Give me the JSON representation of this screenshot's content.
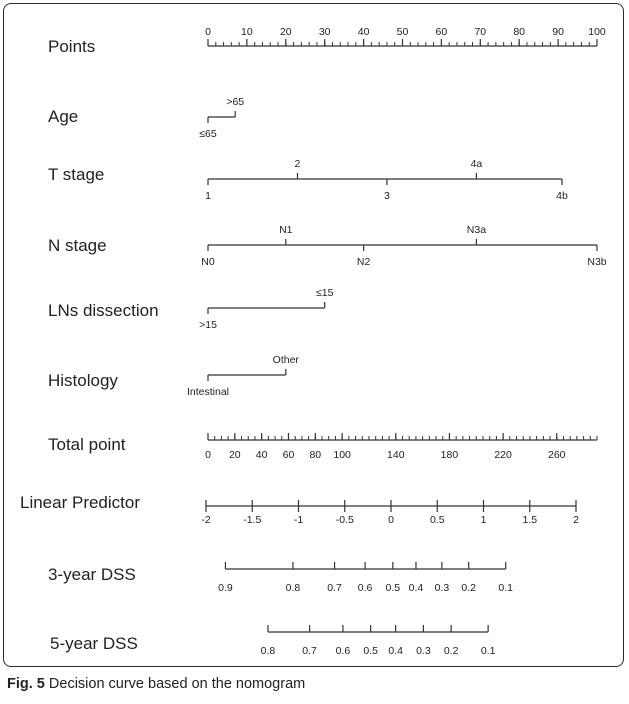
{
  "chart_data": {
    "type": "nomogram",
    "rows": [
      {
        "id": "points",
        "label": "Points",
        "range": [
          0,
          100
        ],
        "ticks": [
          {
            "value": 0,
            "label": "0",
            "pos": "above"
          },
          {
            "value": 10,
            "label": "10",
            "pos": "above"
          },
          {
            "value": 20,
            "label": "20",
            "pos": "above"
          },
          {
            "value": 30,
            "label": "30",
            "pos": "above"
          },
          {
            "value": 40,
            "label": "40",
            "pos": "above"
          },
          {
            "value": 50,
            "label": "50",
            "pos": "above"
          },
          {
            "value": 60,
            "label": "60",
            "pos": "above"
          },
          {
            "value": 70,
            "label": "70",
            "pos": "above"
          },
          {
            "value": 80,
            "label": "80",
            "pos": "above"
          },
          {
            "value": 90,
            "label": "90",
            "pos": "above"
          },
          {
            "value": 100,
            "label": "100",
            "pos": "above"
          }
        ],
        "minor_step": 2
      },
      {
        "id": "age",
        "label": "Age",
        "range": [
          0,
          7
        ],
        "ticks": [
          {
            "value": 0,
            "label": "≤65",
            "pos": "below"
          },
          {
            "value": 7,
            "label": ">65",
            "pos": "above"
          }
        ]
      },
      {
        "id": "t-stage",
        "label": "T stage",
        "range": [
          0,
          91
        ],
        "ticks": [
          {
            "value": 0,
            "label": "1",
            "pos": "below"
          },
          {
            "value": 23,
            "label": "2",
            "pos": "above"
          },
          {
            "value": 46,
            "label": "3",
            "pos": "below"
          },
          {
            "value": 69,
            "label": "4a",
            "pos": "above"
          },
          {
            "value": 91,
            "label": "4b",
            "pos": "below"
          }
        ]
      },
      {
        "id": "n-stage",
        "label": "N stage",
        "range": [
          0,
          100
        ],
        "ticks": [
          {
            "value": 0,
            "label": "N0",
            "pos": "below"
          },
          {
            "value": 20,
            "label": "N1",
            "pos": "above"
          },
          {
            "value": 40,
            "label": "N2",
            "pos": "below"
          },
          {
            "value": 69,
            "label": "N3a",
            "pos": "above"
          },
          {
            "value": 100,
            "label": "N3b",
            "pos": "below"
          }
        ]
      },
      {
        "id": "lns-dissection",
        "label": "LNs dissection",
        "range": [
          0,
          30
        ],
        "ticks": [
          {
            "value": 0,
            "label": ">15",
            "pos": "below"
          },
          {
            "value": 30,
            "label": "≤15",
            "pos": "above"
          }
        ]
      },
      {
        "id": "histology",
        "label": "Histology",
        "range": [
          0,
          20
        ],
        "ticks": [
          {
            "value": 0,
            "label": "Intestinal",
            "pos": "below"
          },
          {
            "value": 20,
            "label": "Other",
            "pos": "above"
          }
        ]
      },
      {
        "id": "total-point",
        "label": "Total point",
        "range": [
          0,
          290
        ],
        "ticks": [
          {
            "value": 0,
            "label": "0",
            "pos": "below"
          },
          {
            "value": 20,
            "label": "20",
            "pos": "below"
          },
          {
            "value": 40,
            "label": "40",
            "pos": "below"
          },
          {
            "value": 60,
            "label": "60",
            "pos": "below"
          },
          {
            "value": 80,
            "label": "80",
            "pos": "below"
          },
          {
            "value": 100,
            "label": "100",
            "pos": "below"
          },
          {
            "value": 140,
            "label": "140",
            "pos": "below"
          },
          {
            "value": 180,
            "label": "180",
            "pos": "below"
          },
          {
            "value": 220,
            "label": "220",
            "pos": "below"
          },
          {
            "value": 260,
            "label": "260",
            "pos": "below"
          }
        ],
        "minor_step": 5
      },
      {
        "id": "linear-predictor",
        "label": "Linear Predictor",
        "range": [
          -2,
          2
        ],
        "ticks": [
          {
            "value": -2,
            "label": "-2",
            "pos": "below"
          },
          {
            "value": -1.5,
            "label": "-1.5",
            "pos": "below"
          },
          {
            "value": -1,
            "label": "-1",
            "pos": "below"
          },
          {
            "value": -0.5,
            "label": "-0.5",
            "pos": "below"
          },
          {
            "value": 0,
            "label": "0",
            "pos": "below"
          },
          {
            "value": 0.5,
            "label": "0.5",
            "pos": "below"
          },
          {
            "value": 1,
            "label": "1",
            "pos": "below"
          },
          {
            "value": 1.5,
            "label": "1.5",
            "pos": "below"
          },
          {
            "value": 2,
            "label": "2",
            "pos": "below"
          }
        ]
      },
      {
        "id": "dss-3-year",
        "label": "3-year DSS",
        "ticks": [
          {
            "value": 0.9,
            "label": "0.9",
            "lp": -1.79
          },
          {
            "value": 0.8,
            "label": "0.8",
            "lp": -1.06
          },
          {
            "value": 0.7,
            "label": "0.7",
            "lp": -0.61
          },
          {
            "value": 0.6,
            "label": "0.6",
            "lp": -0.28
          },
          {
            "value": 0.5,
            "label": "0.5",
            "lp": 0.02
          },
          {
            "value": 0.4,
            "label": "0.4",
            "lp": 0.27
          },
          {
            "value": 0.3,
            "label": "0.3",
            "lp": 0.55
          },
          {
            "value": 0.2,
            "label": "0.2",
            "lp": 0.84
          },
          {
            "value": 0.1,
            "label": "0.1",
            "lp": 1.24
          }
        ]
      },
      {
        "id": "dss-5-year",
        "label": "5-year DSS",
        "ticks": [
          {
            "value": 0.8,
            "label": "0.8",
            "lp": -1.33
          },
          {
            "value": 0.7,
            "label": "0.7",
            "lp": -0.88
          },
          {
            "value": 0.6,
            "label": "0.6",
            "lp": -0.52
          },
          {
            "value": 0.5,
            "label": "0.5",
            "lp": -0.22
          },
          {
            "value": 0.4,
            "label": "0.4",
            "lp": 0.05
          },
          {
            "value": 0.3,
            "label": "0.3",
            "lp": 0.35
          },
          {
            "value": 0.2,
            "label": "0.2",
            "lp": 0.65
          },
          {
            "value": 0.1,
            "label": "0.1",
            "lp": 1.05
          }
        ]
      }
    ]
  },
  "caption": {
    "label": "Fig. 5",
    "text": "Decision curve based on the nomogram"
  }
}
